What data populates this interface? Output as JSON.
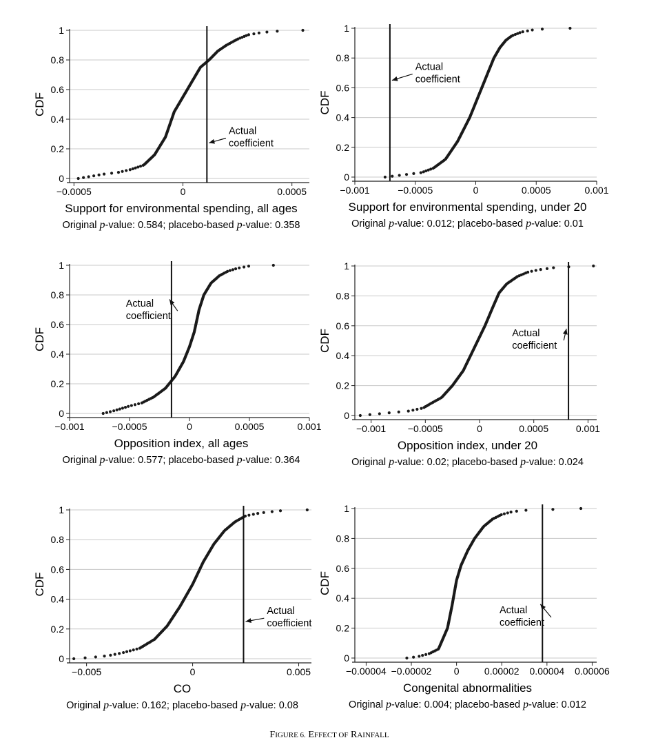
{
  "figure": {
    "caption": "Figure 6. Effect of Rainfall",
    "caption_parts": [
      {
        "text": "F",
        "big": true
      },
      {
        "text": "IGURE 6.",
        "big": false
      },
      {
        "text": "  E",
        "big": true
      },
      {
        "text": "FFECT OF",
        "big": false
      },
      {
        "text": " R",
        "big": true
      },
      {
        "text": "AINFALL",
        "big": false
      }
    ]
  },
  "chart_data": [
    {
      "type": "scatter",
      "title": "Support for environmental spending, all ages",
      "xlabel": "Support for environmental spending, all ages",
      "ylabel": "CDF",
      "xlim": [
        -0.00052,
        0.00058
      ],
      "ylim": [
        0,
        1
      ],
      "x_ticks": [
        -0.0005,
        0,
        0.0005
      ],
      "x_tick_labels": [
        "−0.0005",
        "0",
        "0.0005"
      ],
      "y_ticks": [
        0,
        0.2,
        0.4,
        0.6,
        0.8,
        1
      ],
      "y_tick_labels": [
        "0",
        "0.2",
        "0.4",
        "0.6",
        "0.8",
        "1"
      ],
      "cdf_points": [
        [
          -0.00048,
          0.0
        ],
        [
          -0.00044,
          0.01
        ],
        [
          -0.0004,
          0.02
        ],
        [
          -0.00036,
          0.03
        ],
        [
          -0.0003,
          0.04
        ],
        [
          -0.00024,
          0.06
        ],
        [
          -0.00018,
          0.09
        ],
        [
          -0.00013,
          0.16
        ],
        [
          -8e-05,
          0.28
        ],
        [
          -4e-05,
          0.45
        ],
        [
          0.0,
          0.55
        ],
        [
          4e-05,
          0.65
        ],
        [
          8e-05,
          0.75
        ],
        [
          0.00012,
          0.8
        ],
        [
          0.00016,
          0.86
        ],
        [
          0.0002,
          0.9
        ],
        [
          0.00025,
          0.94
        ],
        [
          0.0003,
          0.97
        ],
        [
          0.00036,
          0.985
        ],
        [
          0.00044,
          0.995
        ],
        [
          0.00055,
          1.0
        ]
      ],
      "actual_coefficient": 0.00011,
      "annotation": {
        "text_lines": [
          "Actual",
          "coefficient"
        ],
        "text_x": 0.00021,
        "text_y": 0.3,
        "arrow_to_y": 0.24
      },
      "p_values": {
        "original_label": "Original ",
        "p": "p",
        "original_suffix": "-value: 0.584;  placebo-based ",
        "placebo_suffix": "-value: 0.358"
      }
    },
    {
      "type": "scatter",
      "title": "Support for environmental spending, under 20",
      "xlabel": "Support for environmental spending, under 20",
      "ylabel": "CDF",
      "xlim": [
        -0.001,
        0.001
      ],
      "ylim": [
        0,
        1
      ],
      "x_ticks": [
        -0.001,
        -0.0005,
        0,
        0.0005,
        0.001
      ],
      "x_tick_labels": [
        "−0.001",
        "−0.0005",
        "0",
        "0.0005",
        "0.001"
      ],
      "y_ticks": [
        0,
        0.2,
        0.4,
        0.6,
        0.8,
        1
      ],
      "y_tick_labels": [
        "0",
        "0.2",
        "0.4",
        "0.6",
        "0.8",
        "1"
      ],
      "cdf_points": [
        [
          -0.00075,
          0.0
        ],
        [
          -0.00065,
          0.01
        ],
        [
          -0.00055,
          0.02
        ],
        [
          -0.00045,
          0.03
        ],
        [
          -0.00035,
          0.06
        ],
        [
          -0.00025,
          0.12
        ],
        [
          -0.00015,
          0.24
        ],
        [
          -5e-05,
          0.4
        ],
        [
          0.0,
          0.5
        ],
        [
          5e-05,
          0.6
        ],
        [
          0.0001,
          0.7
        ],
        [
          0.00015,
          0.8
        ],
        [
          0.0002,
          0.87
        ],
        [
          0.00025,
          0.92
        ],
        [
          0.0003,
          0.95
        ],
        [
          0.00038,
          0.975
        ],
        [
          0.00048,
          0.99
        ],
        [
          0.0006,
          0.997
        ],
        [
          0.00078,
          1.0
        ]
      ],
      "actual_coefficient": -0.00071,
      "annotation": {
        "text_lines": [
          "Actual",
          "coefficient"
        ],
        "text_x": -0.0005,
        "text_y": 0.72,
        "arrow_to_y": 0.65
      },
      "p_values": {
        "original_label": "Original ",
        "p": "p",
        "original_suffix": "-value: 0.012;  placebo-based ",
        "placebo_suffix": "-value: 0.01"
      }
    },
    {
      "type": "scatter",
      "title": "Opposition index, all ages",
      "xlabel": "Opposition index, all ages",
      "ylabel": "CDF",
      "xlim": [
        -0.001,
        0.001
      ],
      "ylim": [
        0,
        1
      ],
      "x_ticks": [
        -0.001,
        -0.0005,
        0,
        0.0005,
        0.001
      ],
      "x_tick_labels": [
        "−0.001",
        "−0.0005",
        "0",
        "0.0005",
        "0.001"
      ],
      "y_ticks": [
        0,
        0.2,
        0.4,
        0.6,
        0.8,
        1
      ],
      "y_tick_labels": [
        "0",
        "0.2",
        "0.4",
        "0.6",
        "0.8",
        "1"
      ],
      "cdf_points": [
        [
          -0.00072,
          0.0
        ],
        [
          -0.00062,
          0.02
        ],
        [
          -0.0005,
          0.05
        ],
        [
          -0.0004,
          0.07
        ],
        [
          -0.0003,
          0.11
        ],
        [
          -0.0002,
          0.17
        ],
        [
          -0.00012,
          0.25
        ],
        [
          -5e-05,
          0.35
        ],
        [
          0.0,
          0.45
        ],
        [
          4e-05,
          0.55
        ],
        [
          8e-05,
          0.7
        ],
        [
          0.00012,
          0.8
        ],
        [
          0.00018,
          0.88
        ],
        [
          0.00025,
          0.93
        ],
        [
          0.00032,
          0.96
        ],
        [
          0.0004,
          0.98
        ],
        [
          0.0005,
          0.995
        ],
        [
          0.0007,
          1.0
        ]
      ],
      "actual_coefficient": -0.00015,
      "annotation": {
        "text_lines": [
          "Actual",
          "coefficient"
        ],
        "text_x": -0.00053,
        "text_y": 0.72,
        "arrow_to_y": 0.77
      },
      "p_values": {
        "original_label": "Original ",
        "p": "p",
        "original_suffix": "-value: 0.577;  placebo-based ",
        "placebo_suffix": "-value: 0.364"
      }
    },
    {
      "type": "scatter",
      "title": "Opposition index, under 20",
      "xlabel": "Opposition index, under 20",
      "ylabel": "CDF",
      "xlim": [
        -0.00115,
        0.00108
      ],
      "ylim": [
        0,
        1
      ],
      "x_ticks": [
        -0.001,
        -0.0005,
        0,
        0.0005,
        0.001
      ],
      "x_tick_labels": [
        "−0.001",
        "−0.0005",
        "0",
        "0.0005",
        "0.001"
      ],
      "y_ticks": [
        0,
        0.2,
        0.4,
        0.6,
        0.8,
        1
      ],
      "y_tick_labels": [
        "0",
        "0.2",
        "0.4",
        "0.6",
        "0.8",
        "1"
      ],
      "cdf_points": [
        [
          -0.0011,
          0.0
        ],
        [
          -0.00095,
          0.01
        ],
        [
          -0.0008,
          0.02
        ],
        [
          -0.00065,
          0.03
        ],
        [
          -0.00052,
          0.05
        ],
        [
          -0.00045,
          0.08
        ],
        [
          -0.00035,
          0.12
        ],
        [
          -0.00025,
          0.2
        ],
        [
          -0.00015,
          0.3
        ],
        [
          -5e-05,
          0.45
        ],
        [
          5e-05,
          0.6
        ],
        [
          0.00012,
          0.72
        ],
        [
          0.00018,
          0.82
        ],
        [
          0.00025,
          0.88
        ],
        [
          0.00035,
          0.93
        ],
        [
          0.00045,
          0.96
        ],
        [
          0.00055,
          0.975
        ],
        [
          0.0007,
          0.99
        ],
        [
          0.00085,
          0.995
        ],
        [
          0.00105,
          1.0
        ]
      ],
      "actual_coefficient": 0.00082,
      "annotation": {
        "text_lines": [
          "Actual",
          "coefficient"
        ],
        "text_x": 0.0003,
        "text_y": 0.53,
        "arrow_to_y": 0.58
      },
      "p_values": {
        "original_label": "Original ",
        "p": "p",
        "original_suffix": "-value: 0.02;  placebo-based ",
        "placebo_suffix": "-value: 0.024"
      }
    },
    {
      "type": "scatter",
      "title": "CO",
      "xlabel": "CO",
      "ylabel": "CDF",
      "xlim": [
        -0.0058,
        0.0056
      ],
      "ylim": [
        0,
        1
      ],
      "x_ticks": [
        -0.005,
        0,
        0.005
      ],
      "x_tick_labels": [
        "−0.005",
        "0",
        "0.005"
      ],
      "y_ticks": [
        0,
        0.2,
        0.4,
        0.6,
        0.8,
        1
      ],
      "y_tick_labels": [
        "0",
        "0.2",
        "0.4",
        "0.6",
        "0.8",
        "1"
      ],
      "cdf_points": [
        [
          -0.0056,
          0.0
        ],
        [
          -0.0047,
          0.01
        ],
        [
          -0.004,
          0.02
        ],
        [
          -0.0033,
          0.04
        ],
        [
          -0.0025,
          0.07
        ],
        [
          -0.0018,
          0.13
        ],
        [
          -0.0012,
          0.22
        ],
        [
          -0.0006,
          0.35
        ],
        [
          0.0,
          0.5
        ],
        [
          0.0005,
          0.65
        ],
        [
          0.001,
          0.77
        ],
        [
          0.0015,
          0.86
        ],
        [
          0.002,
          0.92
        ],
        [
          0.0025,
          0.96
        ],
        [
          0.0032,
          0.98
        ],
        [
          0.0042,
          0.995
        ],
        [
          0.0054,
          1.0
        ]
      ],
      "actual_coefficient": 0.0024,
      "annotation": {
        "text_lines": [
          "Actual",
          "coefficient"
        ],
        "text_x": 0.0035,
        "text_y": 0.3,
        "arrow_to_y": 0.25
      },
      "p_values": {
        "original_label": "Original ",
        "p": "p",
        "original_suffix": "-value: 0.162;  placebo-based ",
        "placebo_suffix": "-value: 0.08"
      }
    },
    {
      "type": "scatter",
      "title": "Congenital abnormalities",
      "xlabel": "Congenital abnormalities",
      "ylabel": "CDF",
      "xlim": [
        -4.5e-05,
        6.2e-05
      ],
      "ylim": [
        0,
        1
      ],
      "x_ticks": [
        -4e-05,
        -2e-05,
        0,
        2e-05,
        4e-05,
        6e-05
      ],
      "x_tick_labels": [
        "−0.00004",
        "−0.00002",
        "0",
        "0.00002",
        "0.00004",
        "0.00006"
      ],
      "y_ticks": [
        0,
        0.2,
        0.4,
        0.6,
        0.8,
        1
      ],
      "y_tick_labels": [
        "0",
        "0.2",
        "0.4",
        "0.6",
        "0.8",
        "1"
      ],
      "cdf_points": [
        [
          -2.2e-05,
          0.0
        ],
        [
          -1.7e-05,
          0.01
        ],
        [
          -1.2e-05,
          0.03
        ],
        [
          -8e-06,
          0.06
        ],
        [
          -4e-06,
          0.2
        ],
        [
          -2e-06,
          0.35
        ],
        [
          0.0,
          0.52
        ],
        [
          2e-06,
          0.62
        ],
        [
          5e-06,
          0.72
        ],
        [
          8e-06,
          0.8
        ],
        [
          1.2e-05,
          0.88
        ],
        [
          1.6e-05,
          0.93
        ],
        [
          2e-05,
          0.96
        ],
        [
          2.5e-05,
          0.98
        ],
        [
          3.2e-05,
          0.99
        ],
        [
          4.5e-05,
          0.995
        ],
        [
          5.5e-05,
          1.0
        ]
      ],
      "actual_coefficient": 3.8e-05,
      "annotation": {
        "text_lines": [
          "Actual",
          "coefficient"
        ],
        "text_x": 1.9e-05,
        "text_y": 0.3,
        "arrow_to_y": 0.36
      },
      "p_values": {
        "original_label": "Original ",
        "p": "p",
        "original_suffix": "-value: 0.004;  placebo-based ",
        "placebo_suffix": "-value: 0.012"
      }
    }
  ]
}
